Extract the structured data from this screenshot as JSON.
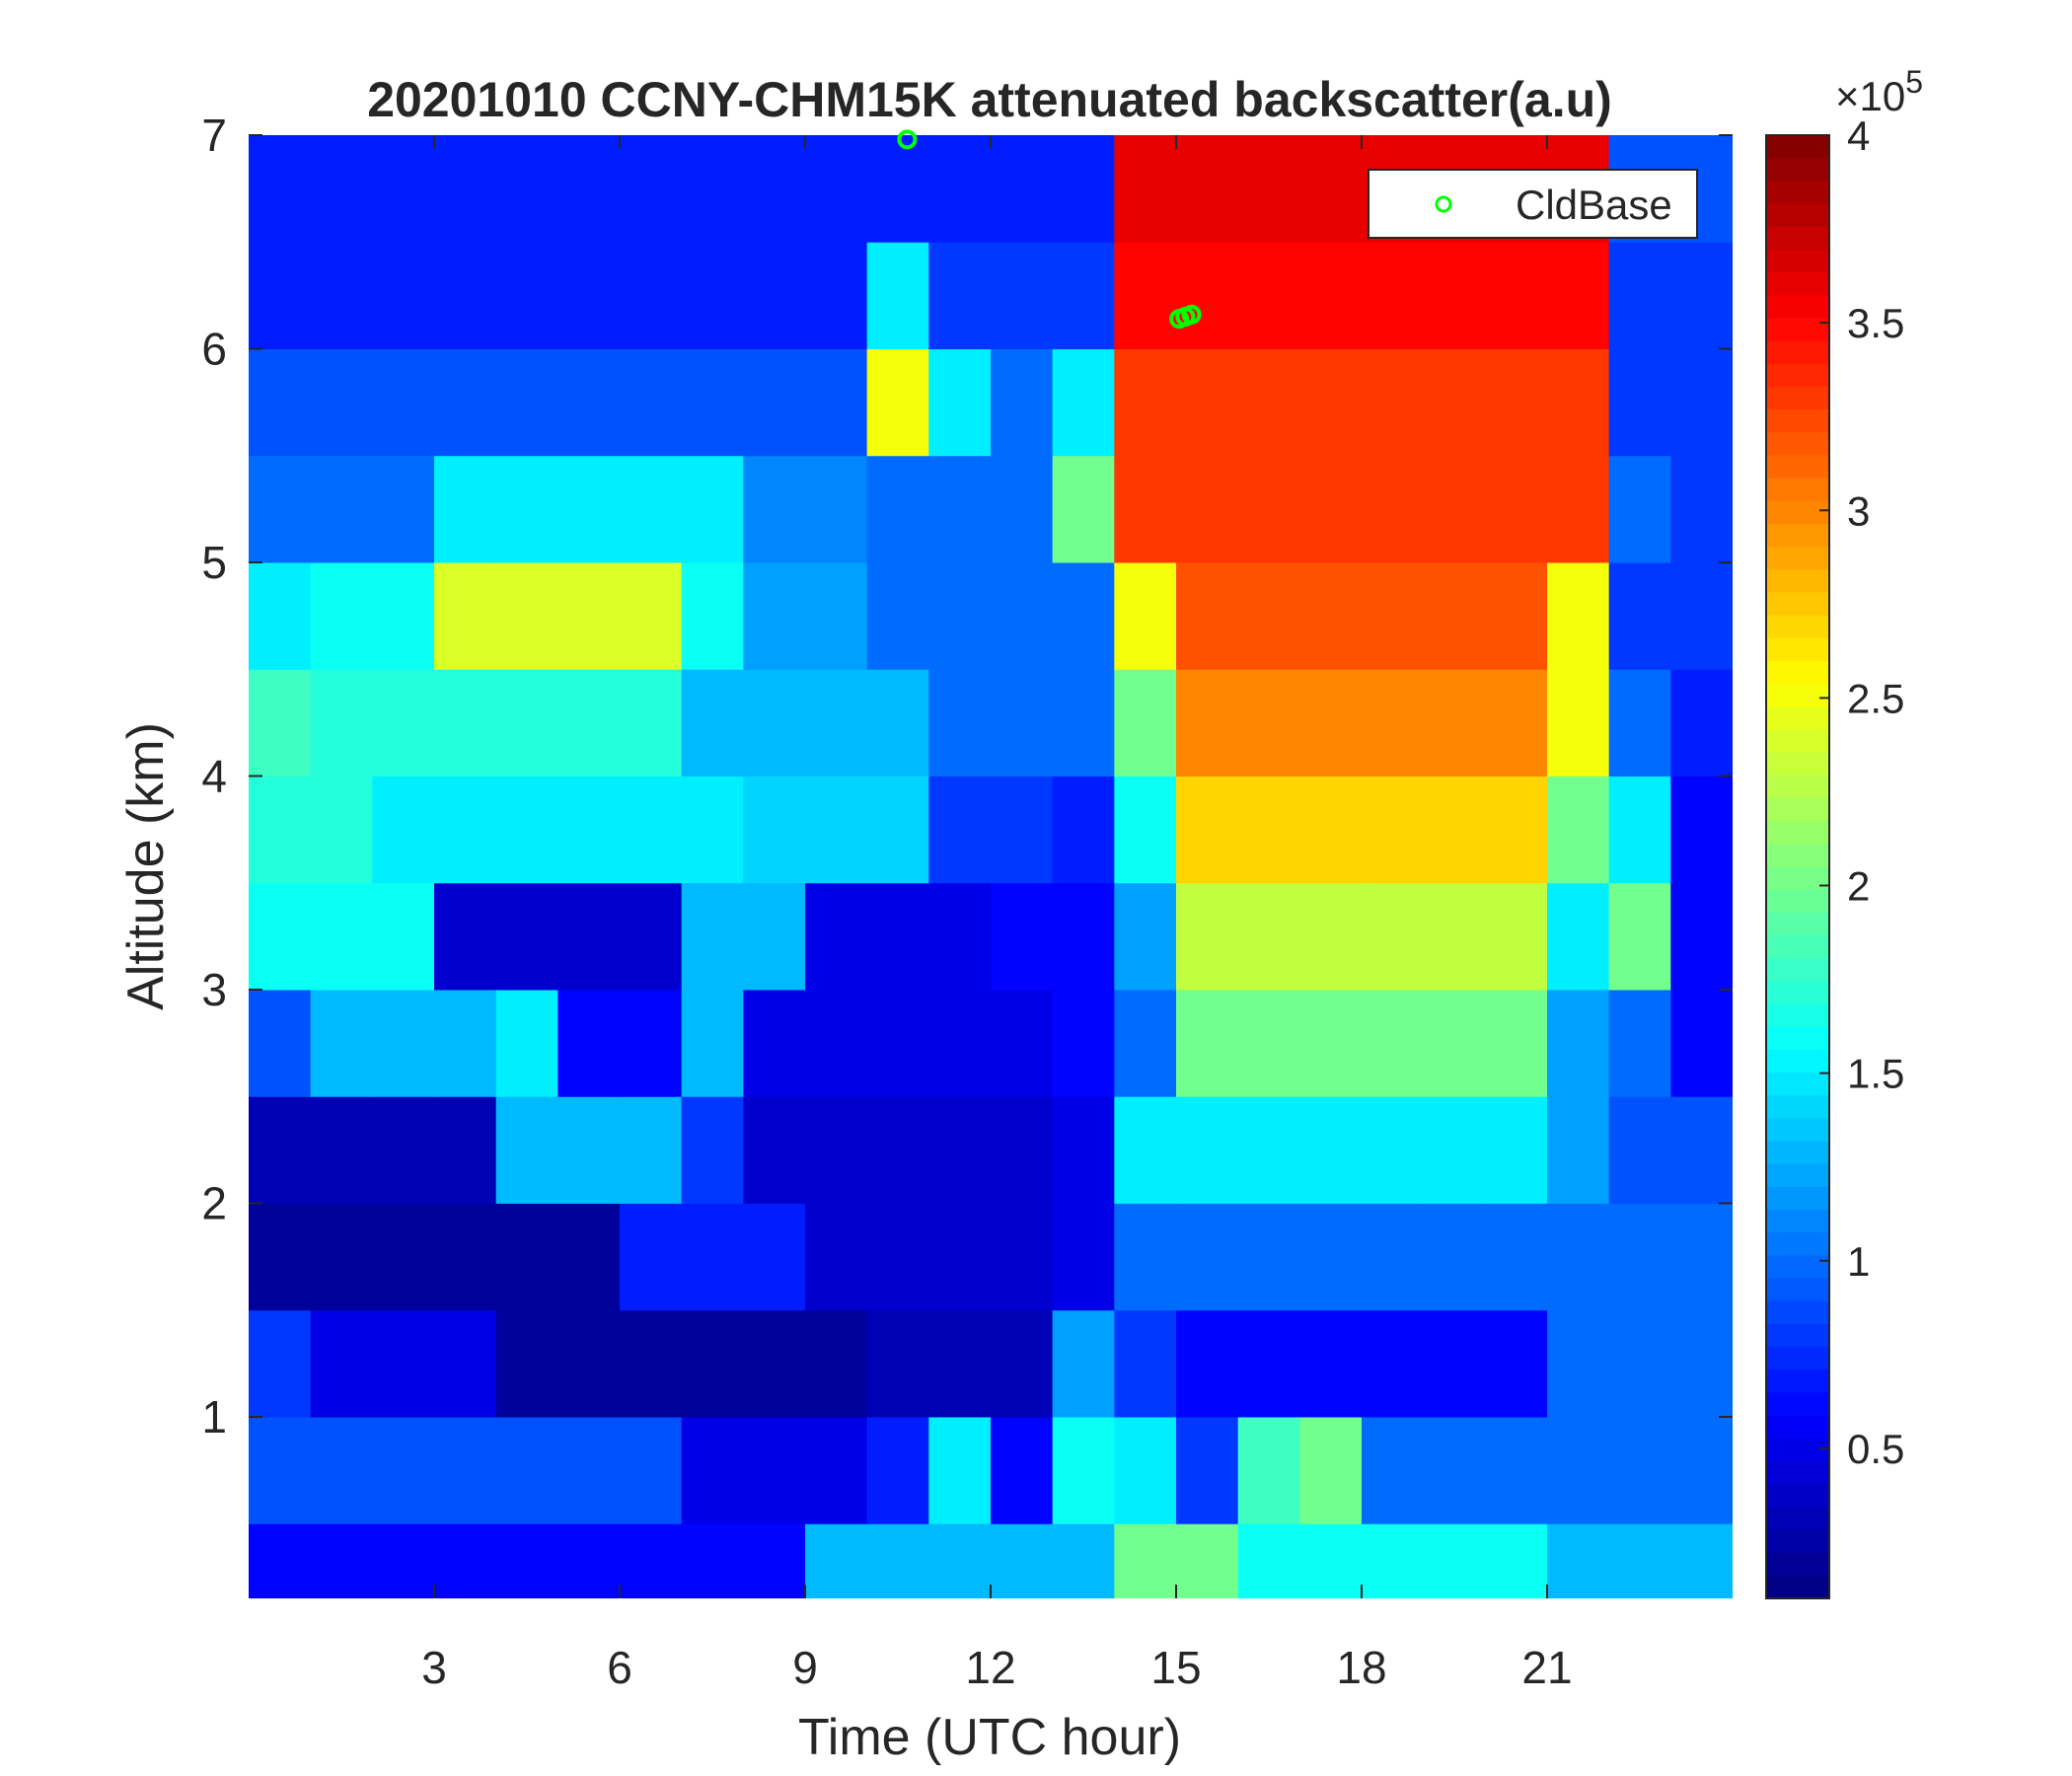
{
  "chart_data": {
    "type": "heatmap",
    "title": "20201010 CCNY-CHM15K attenuated backscatter(a.u)",
    "xlabel": "Time (UTC hour)",
    "ylabel": "Altitude (km)",
    "xlim": [
      0,
      24
    ],
    "ylim": [
      0.15,
      7
    ],
    "xticks": [
      3,
      6,
      9,
      12,
      15,
      18,
      21
    ],
    "yticks": [
      1,
      2,
      3,
      4,
      5,
      6,
      7
    ],
    "colormap": "jet",
    "clim": [
      0.1,
      4
    ],
    "colorbar_ticks": [
      0.5,
      1,
      1.5,
      2,
      2.5,
      3,
      3.5,
      4
    ],
    "colorbar_multiplier": "×10",
    "colorbar_exponent": "5",
    "x": [
      0.5,
      1.5,
      2.5,
      3.5,
      4.5,
      5.5,
      6.5,
      7.5,
      8.5,
      9.5,
      10.5,
      11.5,
      12.5,
      13.5,
      14.5,
      15.5,
      16.5,
      17.5,
      18.5,
      19.5,
      20.5,
      21.5,
      22.5,
      23.5
    ],
    "y": [
      0.25,
      0.75,
      1.25,
      1.75,
      2.25,
      2.75,
      3.25,
      3.75,
      4.25,
      4.75,
      5.25,
      5.75,
      6.25,
      6.75
    ],
    "z": [
      [
        0.6,
        0.6,
        0.6,
        0.6,
        0.6,
        0.6,
        0.6,
        0.6,
        0.6,
        1.3,
        1.3,
        1.3,
        1.3,
        1.3,
        2.0,
        2.0,
        1.6,
        1.6,
        1.6,
        1.6,
        1.6,
        1.3,
        1.3,
        1.3
      ],
      [
        0.9,
        0.9,
        0.9,
        0.9,
        0.9,
        0.9,
        0.9,
        0.5,
        0.5,
        0.5,
        0.7,
        1.5,
        0.6,
        1.6,
        1.5,
        0.8,
        1.8,
        2.0,
        1.0,
        1.0,
        1.0,
        1.0,
        1.0,
        1.0
      ],
      [
        0.8,
        0.5,
        0.5,
        0.5,
        0.2,
        0.2,
        0.2,
        0.2,
        0.2,
        0.2,
        0.3,
        0.3,
        0.3,
        1.2,
        0.8,
        0.6,
        0.6,
        0.6,
        0.6,
        0.6,
        0.6,
        1.0,
        1.0,
        1.0
      ],
      [
        0.2,
        0.2,
        0.2,
        0.2,
        0.2,
        0.2,
        0.7,
        0.7,
        0.7,
        0.4,
        0.4,
        0.4,
        0.4,
        0.5,
        1.0,
        1.0,
        1.0,
        1.0,
        1.0,
        1.0,
        1.0,
        1.0,
        1.0,
        1.0
      ],
      [
        0.3,
        0.3,
        0.3,
        0.3,
        1.3,
        1.3,
        1.3,
        0.8,
        0.4,
        0.4,
        0.4,
        0.4,
        0.4,
        0.5,
        1.5,
        1.5,
        1.5,
        1.5,
        1.5,
        1.5,
        1.5,
        1.2,
        0.9,
        0.9
      ],
      [
        0.9,
        1.3,
        1.3,
        1.3,
        1.5,
        0.6,
        0.6,
        1.3,
        0.5,
        0.5,
        0.5,
        0.5,
        0.5,
        0.6,
        1.0,
        2.0,
        2.0,
        2.0,
        2.0,
        2.0,
        2.0,
        1.2,
        1.0,
        0.6
      ],
      [
        1.6,
        1.6,
        1.6,
        0.4,
        0.4,
        0.4,
        0.4,
        1.3,
        1.3,
        0.5,
        0.5,
        0.5,
        0.6,
        0.6,
        1.2,
        2.3,
        2.3,
        2.3,
        2.3,
        2.3,
        2.3,
        1.5,
        2.0,
        0.6
      ],
      [
        1.7,
        1.7,
        1.5,
        1.5,
        1.5,
        1.5,
        1.5,
        1.5,
        1.4,
        1.4,
        1.4,
        0.8,
        0.8,
        0.7,
        1.6,
        2.7,
        2.7,
        2.7,
        2.7,
        2.7,
        2.7,
        2.0,
        1.5,
        0.6
      ],
      [
        1.8,
        1.7,
        1.7,
        1.7,
        1.7,
        1.7,
        1.7,
        1.3,
        1.3,
        1.3,
        1.3,
        1.0,
        1.0,
        1.0,
        2.0,
        3.0,
        3.0,
        3.0,
        3.0,
        3.0,
        3.0,
        2.5,
        1.0,
        0.7
      ],
      [
        1.5,
        1.6,
        1.6,
        2.4,
        2.4,
        2.4,
        2.4,
        1.6,
        1.2,
        1.2,
        1.0,
        1.0,
        1.0,
        1.0,
        2.5,
        3.2,
        3.2,
        3.2,
        3.2,
        3.2,
        3.2,
        2.5,
        0.8,
        0.8
      ],
      [
        1.0,
        1.0,
        1.0,
        1.5,
        1.5,
        1.5,
        1.5,
        1.5,
        1.1,
        1.1,
        1.0,
        1.0,
        1.0,
        2.0,
        3.3,
        3.3,
        3.3,
        3.3,
        3.3,
        3.3,
        3.3,
        3.3,
        1.0,
        0.8
      ],
      [
        0.9,
        0.9,
        0.9,
        0.9,
        0.9,
        0.9,
        0.9,
        0.9,
        0.9,
        0.9,
        2.5,
        1.5,
        1.0,
        1.5,
        3.3,
        3.3,
        3.3,
        3.3,
        3.3,
        3.3,
        3.3,
        3.3,
        0.8,
        0.8
      ],
      [
        0.7,
        0.7,
        0.7,
        0.7,
        0.7,
        0.7,
        0.7,
        0.7,
        0.7,
        0.7,
        1.5,
        0.8,
        0.8,
        0.8,
        3.5,
        3.5,
        3.5,
        3.5,
        3.5,
        3.5,
        3.5,
        3.5,
        0.8,
        0.8
      ],
      [
        0.7,
        0.7,
        0.7,
        0.7,
        0.7,
        0.7,
        0.7,
        0.7,
        0.7,
        0.7,
        0.7,
        0.7,
        0.7,
        0.7,
        3.6,
        3.6,
        3.6,
        3.6,
        3.6,
        3.6,
        3.6,
        3.6,
        0.9,
        0.9
      ]
    ],
    "series": [
      {
        "name": "CldBase",
        "color": "#00ff00",
        "x": [
          10.65,
          15.05,
          15.15,
          15.25
        ],
        "values": [
          6.98,
          6.14,
          6.15,
          6.16
        ]
      }
    ],
    "legend": "upper right"
  }
}
